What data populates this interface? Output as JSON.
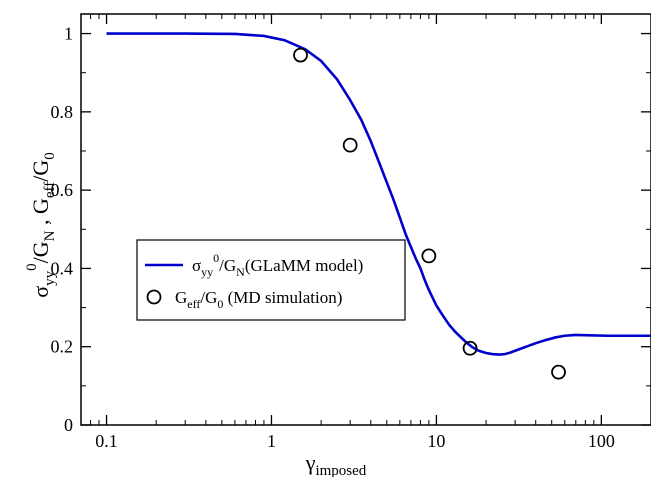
{
  "chart_data": {
    "type": "line",
    "x_scale": "log",
    "xlim": [
      0.07,
      200
    ],
    "ylim": [
      0,
      1.05
    ],
    "grid": false,
    "legend_position": "center-left",
    "x_ticks": [
      {
        "value": 0.1,
        "label": "0.1"
      },
      {
        "value": 1,
        "label": "1"
      },
      {
        "value": 10,
        "label": "10"
      },
      {
        "value": 100,
        "label": "100"
      }
    ],
    "y_ticks": [
      {
        "value": 0,
        "label": "0"
      },
      {
        "value": 0.2,
        "label": "0.2"
      },
      {
        "value": 0.4,
        "label": "0.4"
      },
      {
        "value": 0.6,
        "label": "0.6"
      },
      {
        "value": 0.8,
        "label": "0.8"
      },
      {
        "value": 1,
        "label": "1"
      }
    ],
    "xlabel": {
      "main": "γ",
      "sub": "imposed"
    },
    "ylabel": {
      "sigma": "σ",
      "sigma_sub": "yy",
      "sigma_sup": "0",
      "g_n": "/G",
      "g_n_sub": "N",
      "sep": " , G",
      "eff_sub": "eff",
      "g0": "/G",
      "g0_sub": "0"
    },
    "series": [
      {
        "kind": "line",
        "color": "#0000cc",
        "legend": {
          "sigma": "σ",
          "sub": "yy",
          "sup": "0",
          "g": "/G",
          "g_sub": "N",
          "rest": "(GLaMM model)"
        },
        "x": [
          0.1,
          0.3,
          0.6,
          0.9,
          1.2,
          1.6,
          2.0,
          2.5,
          3.0,
          3.5,
          4.0,
          4.5,
          5.0,
          5.5,
          6.0,
          6.5,
          7.0,
          7.5,
          8.0,
          8.5,
          9.0,
          10.0,
          11.0,
          12.0,
          13.0,
          14.0,
          15.0,
          16.5,
          18.0,
          20.0,
          22.0,
          24.0,
          26.0,
          28.0,
          31.0,
          35.0,
          40.0,
          46.0,
          53.0,
          60.0,
          70.0,
          85.0,
          110.0,
          150.0,
          200.0
        ],
        "y": [
          1.0,
          1.0,
          0.999,
          0.994,
          0.983,
          0.96,
          0.93,
          0.883,
          0.83,
          0.78,
          0.725,
          0.67,
          0.62,
          0.575,
          0.53,
          0.488,
          0.455,
          0.425,
          0.4,
          0.37,
          0.345,
          0.305,
          0.278,
          0.255,
          0.238,
          0.225,
          0.213,
          0.199,
          0.19,
          0.184,
          0.181,
          0.18,
          0.181,
          0.185,
          0.192,
          0.2,
          0.209,
          0.217,
          0.224,
          0.228,
          0.23,
          0.229,
          0.228,
          0.228,
          0.228
        ]
      },
      {
        "kind": "scatter",
        "color": "#000000",
        "legend": {
          "g": "G",
          "g_sub": "eff",
          "mid": "/G",
          "mid_sub": "0",
          "rest": " (MD simulation)"
        },
        "x": [
          1.5,
          3.0,
          9.0,
          16.0,
          55.0
        ],
        "y": [
          0.945,
          0.715,
          0.432,
          0.196,
          0.135
        ]
      }
    ]
  }
}
